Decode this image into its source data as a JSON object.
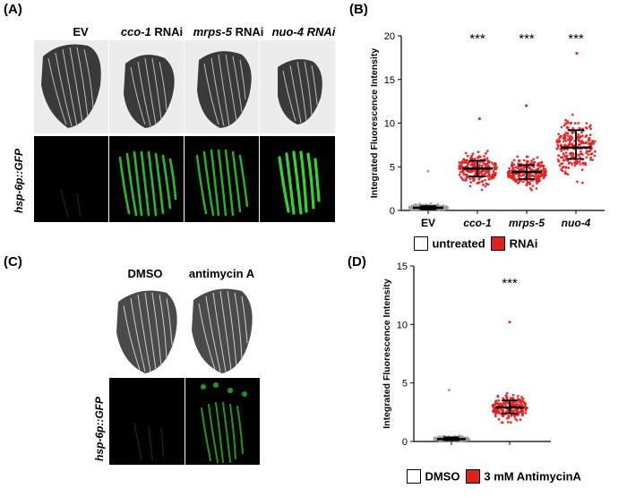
{
  "panels": {
    "a": {
      "letter": "(A)",
      "columns": [
        {
          "name": "EV",
          "suffix": ""
        },
        {
          "name": "cco-1",
          "suffix": " RNAi"
        },
        {
          "name": "mrps-5",
          "suffix": " RNAi"
        },
        {
          "name": "nuo-4 RNAi",
          "suffix": ""
        }
      ],
      "side_label": "hsp-6p::GFP"
    },
    "b": {
      "letter": "(B)"
    },
    "c": {
      "letter": "(C)",
      "columns": [
        "DMSO",
        "antimycin A"
      ],
      "side_label": "hsp-6p::GFP"
    },
    "d": {
      "letter": "(D)"
    }
  },
  "chart_data": [
    {
      "type": "scatter",
      "panel": "B",
      "ylabel": "Integrated Fluorescence Intensity",
      "ylim": [
        0,
        20
      ],
      "yticks": [
        "0",
        "5",
        "10",
        "15",
        "20"
      ],
      "categories": [
        "EV",
        "cco-1",
        "mrps-5",
        "nuo-4"
      ],
      "medians": [
        0.3,
        4.8,
        4.4,
        7.2
      ],
      "q1": [
        0.1,
        3.9,
        3.6,
        5.9
      ],
      "q3": [
        0.5,
        5.7,
        5.2,
        9.2
      ],
      "max_values": [
        4.5,
        10.5,
        12.0,
        18.0
      ],
      "point_colors": [
        "#9e9e9e",
        "#e02020",
        "#e02020",
        "#e02020"
      ],
      "significance": [
        "",
        "***",
        "***",
        "***"
      ],
      "legend": [
        {
          "label": "untreated",
          "color": "#ffffff"
        },
        {
          "label": "RNAi",
          "color": "#e02020"
        }
      ]
    },
    {
      "type": "scatter",
      "panel": "D",
      "ylabel": "Integrated Fluorescence Intensity",
      "ylim": [
        0,
        15
      ],
      "yticks": [
        "0",
        "5",
        "10",
        "15"
      ],
      "categories": [
        "DMSO",
        "3 mM AntimycinA"
      ],
      "medians": [
        0.2,
        2.9
      ],
      "q1": [
        0.1,
        2.4
      ],
      "q3": [
        0.35,
        3.5
      ],
      "max_values": [
        4.4,
        10.2
      ],
      "point_colors": [
        "#9e9e9e",
        "#e02020"
      ],
      "significance": [
        "",
        "***"
      ],
      "legend": [
        {
          "label": "DMSO",
          "color": "#ffffff"
        },
        {
          "label": "3 mM AntimycinA",
          "color": "#e02020"
        }
      ]
    }
  ]
}
